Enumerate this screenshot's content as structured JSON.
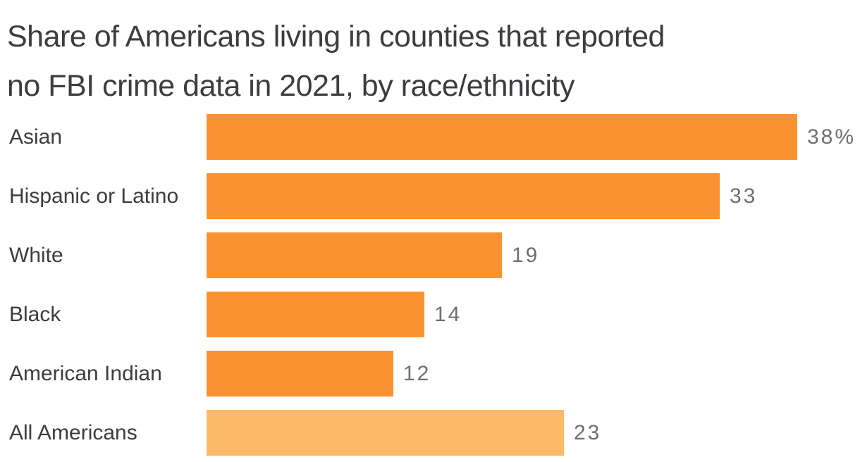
{
  "title_lines": [
    "Share of Americans living in counties that reported",
    "no FBI crime data in 2021, by race/ethnicity"
  ],
  "chart_data": {
    "type": "bar",
    "orientation": "horizontal",
    "title": "Share of Americans living in counties that reported no FBI crime data in 2021, by race/ethnicity",
    "categories": [
      "Asian",
      "Hispanic or Latino",
      "White",
      "Black",
      "American Indian",
      "All Americans"
    ],
    "values": [
      38,
      33,
      19,
      14,
      12,
      23
    ],
    "value_labels": [
      "38%",
      "33",
      "19",
      "14",
      "12",
      "23"
    ],
    "unit": "percent",
    "xlabel": "",
    "ylabel": "",
    "xlim": [
      0,
      38
    ],
    "grid": false,
    "legend": false,
    "bar_colors": [
      "#fb9232",
      "#fb9232",
      "#fb9232",
      "#fb9232",
      "#fb9232",
      "#fdbb69"
    ]
  },
  "colors": {
    "bar": "#fb9232",
    "bar_highlight": "#fdbb69",
    "title_text": "#3b3d40",
    "category_text": "#3b3d40",
    "value_text": "#6d7073",
    "background": "#ffffff"
  }
}
